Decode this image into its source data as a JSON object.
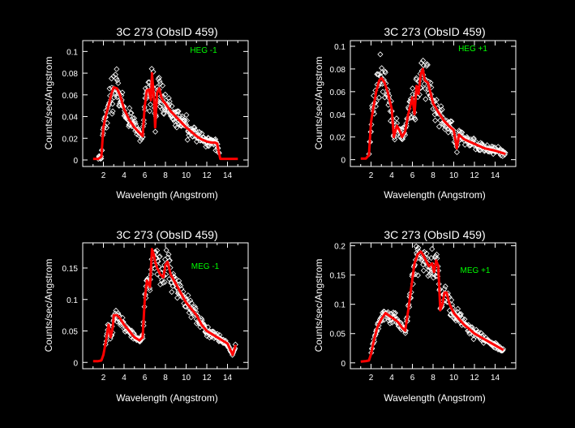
{
  "colors": {
    "background": "#000000",
    "axes": "#ffffff",
    "data": "#ffffff",
    "model": "#ff0000",
    "legend": "#00ff00"
  },
  "chart_data": [
    {
      "type": "scatter",
      "title": "3C 273 (ObsID 459)",
      "legend": "HEG -1",
      "xlabel": "Wavelength (Angstrom)",
      "ylabel": "Counts/sec/Angstrom",
      "xlim": [
        0,
        16
      ],
      "ylim": [
        -0.006,
        0.11
      ],
      "xticks": [
        2,
        4,
        6,
        8,
        10,
        12,
        14
      ],
      "xticklabels": [
        "2",
        "4",
        "6",
        "8",
        "10",
        "12",
        "14"
      ],
      "yticks": [
        0,
        0.02,
        0.04,
        0.06,
        0.08,
        0.1
      ],
      "yticklabels": [
        "0",
        "0.02",
        "0.04",
        "0.06",
        "0.08",
        "0.1"
      ],
      "model": {
        "name": "model",
        "x": [
          1,
          1.5,
          1.8,
          2,
          2.2,
          2.5,
          2.8,
          3,
          3.3,
          3.6,
          4,
          4.5,
          5,
          5.5,
          5.8,
          6,
          6.2,
          6.4,
          6.6,
          6.7,
          6.8,
          6.9,
          7,
          7.2,
          7.4,
          7.6,
          7.8,
          8,
          8.5,
          9,
          9.5,
          10,
          10.5,
          11,
          11.5,
          12,
          12.5,
          12.8,
          13,
          13.3,
          14,
          15
        ],
        "y": [
          0.001,
          0.001,
          0.003,
          0.03,
          0.04,
          0.05,
          0.062,
          0.067,
          0.066,
          0.06,
          0.047,
          0.037,
          0.03,
          0.025,
          0.022,
          0.05,
          0.064,
          0.065,
          0.055,
          0.08,
          0.068,
          0.055,
          0.03,
          0.062,
          0.066,
          0.058,
          0.054,
          0.052,
          0.045,
          0.04,
          0.035,
          0.03,
          0.026,
          0.022,
          0.019,
          0.017,
          0.016,
          0.016,
          0.015,
          0.001,
          0.001,
          0.001
        ]
      },
      "points": {
        "name": "data",
        "x_range": [
          1.5,
          13.2
        ],
        "scatter_rel": 0.22,
        "count": 300
      }
    },
    {
      "type": "scatter",
      "title": "3C 273 (ObsID 459)",
      "legend": "HEG +1",
      "xlabel": "Wavelength (Angstrom)",
      "ylabel": "Counts/sec/Angstrom",
      "xlim": [
        0,
        16
      ],
      "ylim": [
        -0.006,
        0.105
      ],
      "xticks": [
        2,
        4,
        6,
        8,
        10,
        12,
        14
      ],
      "xticklabels": [
        "2",
        "4",
        "6",
        "8",
        "10",
        "12",
        "14"
      ],
      "yticks": [
        0,
        0.02,
        0.04,
        0.06,
        0.08,
        0.1
      ],
      "yticklabels": [
        "0",
        "0.02",
        "0.04",
        "0.06",
        "0.08",
        "0.1"
      ],
      "model": {
        "name": "model",
        "x": [
          1,
          1.5,
          1.8,
          2,
          2.2,
          2.5,
          2.8,
          3,
          3.3,
          3.6,
          4,
          4.2,
          4.5,
          4.8,
          5,
          5.3,
          5.6,
          6,
          6.2,
          6.4,
          6.6,
          6.8,
          7,
          7.2,
          7.5,
          8,
          8.5,
          9,
          9.5,
          10,
          10.3,
          10.5,
          11,
          12,
          13,
          14,
          15
        ],
        "y": [
          0.001,
          0.001,
          0.004,
          0.033,
          0.045,
          0.06,
          0.07,
          0.072,
          0.068,
          0.06,
          0.045,
          0.02,
          0.03,
          0.025,
          0.02,
          0.025,
          0.04,
          0.055,
          0.04,
          0.065,
          0.058,
          0.075,
          0.08,
          0.07,
          0.068,
          0.05,
          0.042,
          0.035,
          0.03,
          0.026,
          0.01,
          0.022,
          0.018,
          0.014,
          0.01,
          0.008,
          0.005
        ]
      },
      "points": {
        "name": "data",
        "x_range": [
          1.8,
          15
        ],
        "scatter_rel": 0.22,
        "count": 300
      }
    },
    {
      "type": "scatter",
      "title": "3C 273 (ObsID 459)",
      "legend": "MEG -1",
      "xlabel": "Wavelength (Angstrom)",
      "ylabel": "Counts/sec/Angstrom",
      "xlim": [
        0,
        16
      ],
      "ylim": [
        -0.01,
        0.19
      ],
      "xticks": [
        2,
        4,
        6,
        8,
        10,
        12,
        14
      ],
      "xticklabels": [
        "2",
        "4",
        "6",
        "8",
        "10",
        "12",
        "14"
      ],
      "yticks": [
        0,
        0.05,
        0.1,
        0.15
      ],
      "yticklabels": [
        "0",
        "0.05",
        "0.1",
        "0.15"
      ],
      "model": {
        "name": "model",
        "x": [
          1,
          1.5,
          1.8,
          2,
          2.2,
          2.5,
          2.7,
          2.9,
          3,
          3.3,
          3.6,
          4,
          4.5,
          5,
          5.5,
          5.8,
          6,
          6.2,
          6.5,
          6.7,
          6.9,
          7,
          7.2,
          7.5,
          7.8,
          8,
          8.2,
          8.5,
          9,
          9.5,
          10,
          10.5,
          11,
          11.5,
          12,
          12.5,
          13,
          13.5,
          14,
          14.5,
          14.8
        ],
        "y": [
          0.002,
          0.002,
          0.003,
          0.012,
          0.03,
          0.06,
          0.04,
          0.055,
          0.075,
          0.075,
          0.07,
          0.06,
          0.05,
          0.04,
          0.035,
          0.04,
          0.1,
          0.13,
          0.12,
          0.18,
          0.17,
          0.16,
          0.15,
          0.14,
          0.135,
          0.155,
          0.16,
          0.14,
          0.125,
          0.11,
          0.095,
          0.085,
          0.075,
          0.06,
          0.05,
          0.045,
          0.04,
          0.035,
          0.03,
          0.012,
          0.028
        ]
      },
      "points": {
        "name": "data",
        "x_range": [
          2.2,
          14.8
        ],
        "scatter_rel": 0.12,
        "count": 280
      }
    },
    {
      "type": "scatter",
      "title": "3C 273 (ObsID 459)",
      "legend": "MEG +1",
      "xlabel": "Wavelength (Angstrom)",
      "ylabel": "Counts/sec/Angstrom",
      "xlim": [
        0,
        16
      ],
      "ylim": [
        -0.01,
        0.205
      ],
      "xticks": [
        2,
        4,
        6,
        8,
        10,
        12,
        14
      ],
      "xticklabels": [
        "2",
        "4",
        "6",
        "8",
        "10",
        "12",
        "14"
      ],
      "yticks": [
        0,
        0.05,
        0.1,
        0.15,
        0.2
      ],
      "yticklabels": [
        "0",
        "0.05",
        "0.1",
        "0.15",
        "0.2"
      ],
      "model": {
        "name": "model",
        "x": [
          1,
          1.5,
          1.8,
          2,
          2.3,
          2.6,
          3,
          3.4,
          3.8,
          4.2,
          4.6,
          5,
          5.3,
          5.6,
          5.9,
          6.2,
          6.5,
          6.8,
          7,
          7.3,
          7.6,
          7.9,
          8.1,
          8.3,
          8.5,
          8.7,
          8.9,
          9.1,
          9.3,
          9.6,
          10,
          10.5,
          11,
          11.5,
          12,
          12.5,
          13,
          13.5,
          14,
          14.5,
          14.8
        ],
        "y": [
          0.002,
          0.003,
          0.004,
          0.015,
          0.04,
          0.06,
          0.075,
          0.085,
          0.08,
          0.075,
          0.07,
          0.06,
          0.055,
          0.09,
          0.13,
          0.17,
          0.185,
          0.19,
          0.185,
          0.175,
          0.165,
          0.17,
          0.155,
          0.175,
          0.165,
          0.09,
          0.1,
          0.12,
          0.12,
          0.1,
          0.085,
          0.075,
          0.065,
          0.058,
          0.05,
          0.045,
          0.04,
          0.035,
          0.03,
          0.025,
          0.022
        ]
      },
      "points": {
        "name": "data",
        "x_range": [
          2.0,
          14.8
        ],
        "scatter_rel": 0.12,
        "count": 280
      }
    }
  ]
}
